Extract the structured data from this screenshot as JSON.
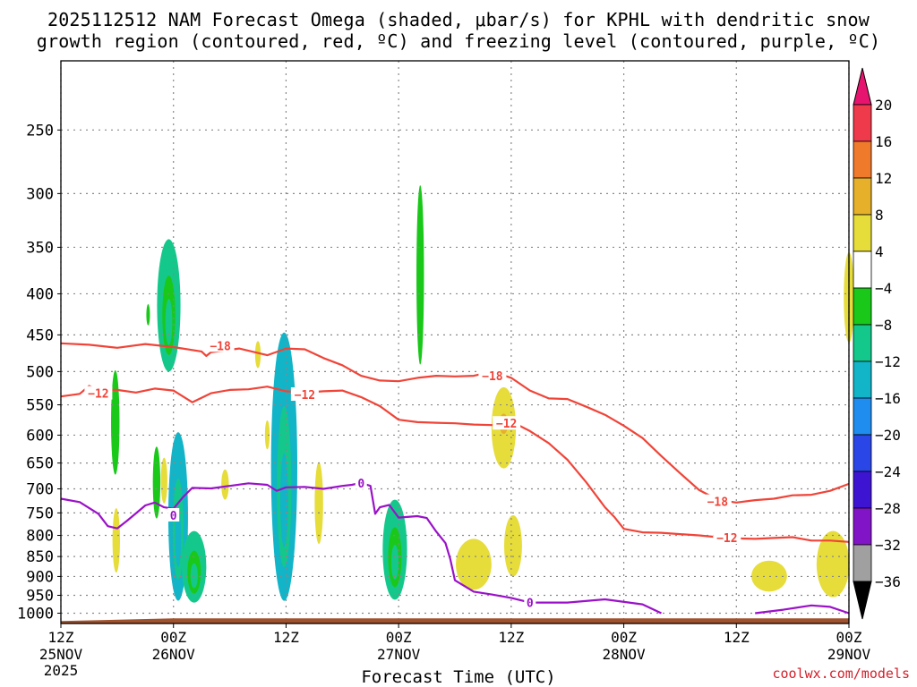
{
  "title": {
    "line1": "2025112512 NAM Forecast Omega (shaded, μbar/s) for KPHL with dendritic snow",
    "line2": "growth region (contoured, red, ºC) and freezing level (contoured, purple, ºC)"
  },
  "credit": "coolwx.com/models",
  "colors": {
    "dgz": "#f04438",
    "freezing": "#9a12c8",
    "terrain": "#a0522d",
    "grid": "#888888"
  },
  "chart_data": {
    "type": "heatmap",
    "xlabel": "Forecast Time (UTC)",
    "ylabel": "",
    "x_units": "hours since 2025-11-25 12Z",
    "xlim": [
      0,
      84
    ],
    "ylim": [
      1030,
      205
    ],
    "y_scale": "log-pressure",
    "y_ticks": [
      250,
      300,
      350,
      400,
      450,
      500,
      550,
      600,
      650,
      700,
      750,
      800,
      850,
      900,
      950,
      1000
    ],
    "x_ticks": [
      {
        "hour": 0,
        "line1": "12Z",
        "line2": "25NOV",
        "line3": "2025"
      },
      {
        "hour": 12,
        "line1": "00Z",
        "line2": "26NOV",
        "line3": ""
      },
      {
        "hour": 24,
        "line1": "12Z",
        "line2": "",
        "line3": ""
      },
      {
        "hour": 36,
        "line1": "00Z",
        "line2": "27NOV",
        "line3": ""
      },
      {
        "hour": 48,
        "line1": "12Z",
        "line2": "",
        "line3": ""
      },
      {
        "hour": 60,
        "line1": "00Z",
        "line2": "28NOV",
        "line3": ""
      },
      {
        "hour": 72,
        "line1": "12Z",
        "line2": "",
        "line3": ""
      },
      {
        "hour": 84,
        "line1": "00Z",
        "line2": "29NOV",
        "line3": ""
      }
    ],
    "colorbar": {
      "labels": [
        "20",
        "16",
        "12",
        "8",
        "4",
        "−4",
        "−8",
        "−12",
        "−16",
        "−20",
        "−24",
        "−28",
        "−32",
        "−36"
      ],
      "boundaries": [
        20,
        16,
        12,
        8,
        4,
        -4,
        -8,
        -12,
        -16,
        -20,
        -24,
        -28,
        -32,
        -36
      ],
      "colors": [
        "#ee3a4a",
        "#f07a2c",
        "#e6b02a",
        "#e6dc3a",
        "#ffffff",
        "#19c819",
        "#14c88c",
        "#12b4c8",
        "#1f8cf0",
        "#2a46e6",
        "#3c14d2",
        "#8214c8",
        "#a0a0a0"
      ],
      "top_color": "#e6146e",
      "bottom_color": "#000000"
    },
    "series": [
      {
        "name": "-18",
        "kind": "dgz_isotherm",
        "points": [
          [
            0,
            461
          ],
          [
            3,
            463
          ],
          [
            6,
            467
          ],
          [
            9,
            462
          ],
          [
            12,
            466
          ],
          [
            15,
            472
          ],
          [
            15.5,
            478
          ],
          [
            16,
            473
          ],
          [
            19,
            468
          ],
          [
            22,
            477
          ],
          [
            24,
            468
          ],
          [
            26,
            469
          ],
          [
            28,
            481
          ],
          [
            30,
            491
          ],
          [
            32,
            506
          ],
          [
            34,
            513
          ],
          [
            36,
            514
          ],
          [
            38,
            509
          ],
          [
            40,
            506
          ],
          [
            42,
            507
          ],
          [
            44,
            506
          ],
          [
            46,
            500
          ],
          [
            48,
            509
          ],
          [
            50,
            528
          ],
          [
            52,
            540
          ],
          [
            54,
            541
          ],
          [
            56,
            553
          ],
          [
            58,
            566
          ],
          [
            60,
            584
          ],
          [
            62,
            605
          ],
          [
            64,
            637
          ],
          [
            66,
            669
          ],
          [
            68,
            702
          ],
          [
            70,
            722
          ],
          [
            72,
            728
          ],
          [
            74,
            723
          ],
          [
            76,
            720
          ],
          [
            78,
            713
          ],
          [
            80,
            712
          ],
          [
            82,
            704
          ],
          [
            84,
            690
          ]
        ],
        "labels": [
          {
            "x": 17,
            "p": 464,
            "text": "−18"
          },
          {
            "x": 46,
            "p": 506,
            "text": "−18"
          },
          {
            "x": 70,
            "p": 726,
            "text": "−18"
          }
        ]
      },
      {
        "name": "-12",
        "kind": "dgz_isotherm",
        "points": [
          [
            0,
            537
          ],
          [
            2,
            533
          ],
          [
            3,
            521
          ],
          [
            4,
            527
          ],
          [
            6,
            527
          ],
          [
            8,
            531
          ],
          [
            10,
            525
          ],
          [
            12,
            528
          ],
          [
            14,
            546
          ],
          [
            16,
            532
          ],
          [
            18,
            527
          ],
          [
            20,
            526
          ],
          [
            22,
            522
          ],
          [
            24,
            529
          ],
          [
            26,
            531
          ],
          [
            28,
            529
          ],
          [
            30,
            528
          ],
          [
            32,
            538
          ],
          [
            34,
            552
          ],
          [
            36,
            574
          ],
          [
            38,
            578
          ],
          [
            40,
            579
          ],
          [
            42,
            580
          ],
          [
            44,
            582
          ],
          [
            46,
            583
          ],
          [
            48,
            577
          ],
          [
            50,
            593
          ],
          [
            52,
            614
          ],
          [
            54,
            644
          ],
          [
            56,
            687
          ],
          [
            58,
            738
          ],
          [
            59,
            759
          ],
          [
            60,
            785
          ],
          [
            62,
            793
          ],
          [
            64,
            794
          ],
          [
            66,
            797
          ],
          [
            68,
            800
          ],
          [
            70,
            804
          ],
          [
            72,
            807
          ],
          [
            74,
            808
          ],
          [
            76,
            806
          ],
          [
            78,
            804
          ],
          [
            80,
            812
          ],
          [
            82,
            812
          ],
          [
            84,
            815
          ]
        ],
        "labels": [
          {
            "x": 4,
            "p": 532,
            "text": "−12"
          },
          {
            "x": 26,
            "p": 534,
            "text": "−12"
          },
          {
            "x": 47.5,
            "p": 580,
            "text": "−12"
          },
          {
            "x": 71,
            "p": 805,
            "text": "−12"
          }
        ]
      },
      {
        "name": "0",
        "kind": "freezing_level",
        "points": [
          [
            0,
            720
          ],
          [
            2,
            727
          ],
          [
            4,
            752
          ],
          [
            5,
            779
          ],
          [
            6,
            784
          ],
          [
            7,
            768
          ],
          [
            8,
            751
          ],
          [
            9,
            734
          ],
          [
            10,
            728
          ],
          [
            11,
            738
          ],
          [
            12,
            741
          ],
          [
            13,
            717
          ],
          [
            14,
            698
          ],
          [
            16,
            699
          ],
          [
            18,
            694
          ],
          [
            20,
            689
          ],
          [
            22,
            692
          ],
          [
            23,
            704
          ],
          [
            24,
            697
          ],
          [
            26,
            696
          ],
          [
            28,
            700
          ],
          [
            30,
            694
          ],
          [
            31,
            692
          ],
          [
            32,
            688
          ],
          [
            33,
            694
          ],
          [
            33.5,
            752
          ],
          [
            34,
            738
          ],
          [
            35,
            733
          ],
          [
            36,
            760
          ],
          [
            38,
            757
          ],
          [
            39,
            761
          ],
          [
            40,
            791
          ],
          [
            41,
            818
          ],
          [
            41.5,
            856
          ],
          [
            42,
            910
          ],
          [
            44,
            940
          ],
          [
            46,
            948
          ],
          [
            48,
            957
          ],
          [
            50,
            970
          ],
          [
            54,
            970
          ],
          [
            58,
            961
          ],
          [
            62,
            975
          ],
          [
            64,
            1000
          ]
        ],
        "labels": [
          {
            "x": 12,
            "p": 755,
            "text": "0"
          },
          {
            "x": 32,
            "p": 688,
            "text": "0"
          },
          {
            "x": 50,
            "p": 970,
            "text": "0"
          }
        ]
      },
      {
        "name": "0",
        "kind": "freezing_level",
        "points": [
          [
            74,
            1000
          ],
          [
            77,
            990
          ],
          [
            80,
            978
          ],
          [
            82,
            982
          ],
          [
            84,
            1000
          ]
        ],
        "labels": []
      }
    ],
    "omega_regions": [
      {
        "x": 5.8,
        "w": 0.9,
        "p_top": 498,
        "p_bot": 672,
        "value": -8
      },
      {
        "x": 9.3,
        "w": 0.3,
        "p_top": 412,
        "p_bot": 438,
        "value": -6
      },
      {
        "x": 10.2,
        "w": 0.8,
        "p_top": 620,
        "p_bot": 762,
        "value": -6
      },
      {
        "x": 11.5,
        "w": 2.5,
        "p_top": 342,
        "p_bot": 500,
        "value": -10
      },
      {
        "x": 12.5,
        "w": 2.1,
        "p_top": 595,
        "p_bot": 965,
        "value": -14
      },
      {
        "x": 14.2,
        "w": 2.6,
        "p_top": 790,
        "p_bot": 970,
        "value": -12
      },
      {
        "x": 23.8,
        "w": 2.8,
        "p_top": 447,
        "p_bot": 965,
        "value": -16
      },
      {
        "x": 35.6,
        "w": 2.6,
        "p_top": 722,
        "p_bot": 962,
        "value": -12
      },
      {
        "x": 38.3,
        "w": 0.8,
        "p_top": 293,
        "p_bot": 490,
        "value": -8
      },
      {
        "x": 5.9,
        "w": 0.8,
        "p_top": 740,
        "p_bot": 890,
        "value": 5
      },
      {
        "x": 11.0,
        "w": 0.7,
        "p_top": 640,
        "p_bot": 730,
        "value": 5
      },
      {
        "x": 17.5,
        "w": 0.8,
        "p_top": 662,
        "p_bot": 722,
        "value": 5
      },
      {
        "x": 21.0,
        "w": 0.6,
        "p_top": 458,
        "p_bot": 495,
        "value": 5
      },
      {
        "x": 22.0,
        "w": 0.5,
        "p_top": 575,
        "p_bot": 625,
        "value": 5
      },
      {
        "x": 27.5,
        "w": 0.9,
        "p_top": 648,
        "p_bot": 820,
        "value": 5
      },
      {
        "x": 44.0,
        "w": 3.8,
        "p_top": 808,
        "p_bot": 935,
        "value": 5
      },
      {
        "x": 47.2,
        "w": 2.6,
        "p_top": 523,
        "p_bot": 660,
        "value": 6
      },
      {
        "x": 48.2,
        "w": 1.9,
        "p_top": 755,
        "p_bot": 900,
        "value": 5
      },
      {
        "x": 75.5,
        "w": 3.8,
        "p_top": 860,
        "p_bot": 940,
        "value": 5
      },
      {
        "x": 82.3,
        "w": 3.5,
        "p_top": 790,
        "p_bot": 955,
        "value": 5
      },
      {
        "x": 84.0,
        "w": 1.1,
        "p_top": 355,
        "p_bot": 460,
        "value": 5
      }
    ],
    "terrain": {
      "p_top": 1015,
      "p_bottom": 1030
    }
  }
}
